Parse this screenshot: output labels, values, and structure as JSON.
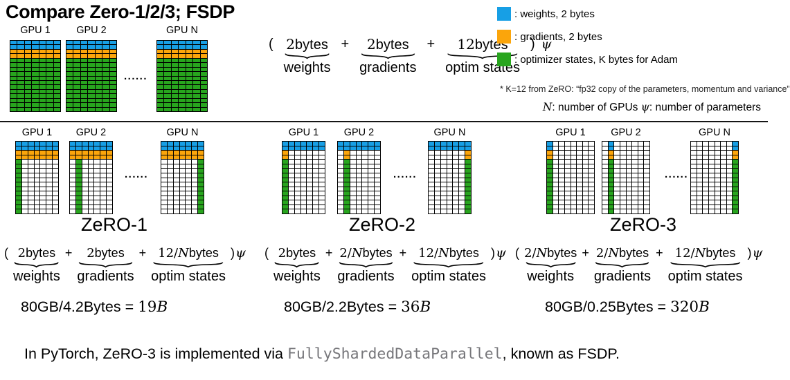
{
  "title": "Compare Zero-1/2/3; FSDP",
  "colors": {
    "weights": "#179fe5",
    "gradients": "#fba50b",
    "optimizer": "#28a51e",
    "empty": "#ffffff",
    "grid_line": "#000000",
    "mono_text": "#76767a"
  },
  "legend": {
    "items": [
      {
        "color_key": "weights",
        "label": ": weights,  2 bytes"
      },
      {
        "color_key": "gradients",
        "label": ": gradients, 2 bytes"
      },
      {
        "color_key": "optimizer",
        "label": ": optimizer states, K bytes for Adam"
      }
    ]
  },
  "footnote": "* K=12 from ZeRO: “fp32 copy of the parameters, momentum and variance”",
  "variables_note": {
    "parts": [
      {
        "t": "N",
        "i": true
      },
      {
        "t": ": number of GPUs  "
      },
      {
        "t": "ψ",
        "i": true
      },
      {
        "t": ": number of parameters"
      }
    ]
  },
  "baseline": {
    "dots": "......",
    "grid": {
      "cols": 7,
      "rows": 16,
      "type": "baseline",
      "blue_rows": 2,
      "orange_rows": 2,
      "green_rows": 12
    },
    "gpus": [
      {
        "label": "GPU 1",
        "shard": 0
      },
      {
        "label": "GPU 2",
        "shard": 1
      },
      {
        "label": "GPU N",
        "shard": -1
      }
    ],
    "formula": {
      "open": "(",
      "close": ")",
      "psi": "ψ",
      "terms": [
        {
          "label": "weights",
          "parts": [
            {
              "t": "2",
              "s": true
            },
            {
              "t": "bytes"
            }
          ]
        },
        {
          "label": "gradients",
          "parts": [
            {
              "t": "2",
              "s": true
            },
            {
              "t": "bytes"
            }
          ]
        },
        {
          "label": "optim states",
          "parts": [
            {
              "t": "12",
              "s": true
            },
            {
              "t": "bytes"
            }
          ]
        }
      ]
    }
  },
  "panels": [
    {
      "name": "ZeRO-1",
      "dots": "......",
      "grid": {
        "cols": 7,
        "rows": 16,
        "type": "zero1",
        "blue_rows": 2,
        "orange_rows": 2,
        "green_rows": 12
      },
      "gpus": [
        {
          "label": "GPU 1",
          "shard": 0
        },
        {
          "label": "GPU 2",
          "shard": 1
        },
        {
          "label": "GPU N",
          "shard": -1
        }
      ],
      "formula": {
        "open": "(",
        "close": ")",
        "psi": "ψ",
        "terms": [
          {
            "label": "weights",
            "parts": [
              {
                "t": "2",
                "s": true
              },
              {
                "t": "bytes"
              }
            ]
          },
          {
            "label": "gradients",
            "parts": [
              {
                "t": "2",
                "s": true
              },
              {
                "t": "bytes"
              }
            ]
          },
          {
            "label": "optim states",
            "parts": [
              {
                "t": "12/",
                "s": true
              },
              {
                "t": "N",
                "i": true
              },
              {
                "t": "bytes"
              }
            ]
          }
        ]
      },
      "equation": {
        "parts": [
          {
            "t": "80GB/4.2Bytes = "
          },
          {
            "t": "19",
            "s": true
          },
          {
            "t": "B",
            "i": true
          }
        ]
      }
    },
    {
      "name": "ZeRO-2",
      "dots": "......",
      "grid": {
        "cols": 7,
        "rows": 16,
        "type": "zero2",
        "blue_rows": 2,
        "orange_rows": 2,
        "green_rows": 12
      },
      "gpus": [
        {
          "label": "GPU 1",
          "shard": 0
        },
        {
          "label": "GPU 2",
          "shard": 1
        },
        {
          "label": "GPU N",
          "shard": -1
        }
      ],
      "formula": {
        "open": "(",
        "close": ")",
        "psi": "ψ",
        "terms": [
          {
            "label": "weights",
            "parts": [
              {
                "t": "2",
                "s": true
              },
              {
                "t": "bytes"
              }
            ]
          },
          {
            "label": "gradients",
            "parts": [
              {
                "t": "2/",
                "s": true
              },
              {
                "t": "N",
                "i": true
              },
              {
                "t": "bytes"
              }
            ]
          },
          {
            "label": "optim states",
            "parts": [
              {
                "t": "12/",
                "s": true
              },
              {
                "t": "N",
                "i": true
              },
              {
                "t": "bytes"
              }
            ]
          }
        ]
      },
      "equation": {
        "parts": [
          {
            "t": "80GB/2.2Bytes = "
          },
          {
            "t": "36",
            "s": true
          },
          {
            "t": "B",
            "i": true
          }
        ]
      }
    },
    {
      "name": "ZeRO-3",
      "dots": "......",
      "grid": {
        "cols": 8,
        "rows": 16,
        "type": "zero3",
        "blue_rows": 2,
        "orange_rows": 2,
        "green_rows": 12
      },
      "gpus": [
        {
          "label": "GPU 1",
          "shard": 0
        },
        {
          "label": "GPU 2",
          "shard": 1
        },
        {
          "label": "GPU N",
          "shard": -1
        }
      ],
      "formula": {
        "open": "(",
        "close": ")",
        "psi": "ψ",
        "terms": [
          {
            "label": "weights",
            "parts": [
              {
                "t": "2/",
                "s": true
              },
              {
                "t": "N",
                "i": true
              },
              {
                "t": "bytes"
              }
            ]
          },
          {
            "label": "gradients",
            "parts": [
              {
                "t": "2/",
                "s": true
              },
              {
                "t": "N",
                "i": true
              },
              {
                "t": "bytes"
              }
            ]
          },
          {
            "label": "optim states",
            "parts": [
              {
                "t": "12/",
                "s": true
              },
              {
                "t": "N",
                "i": true
              },
              {
                "t": "bytes"
              }
            ]
          }
        ]
      },
      "equation": {
        "parts": [
          {
            "t": "80GB/0.25Bytes = "
          },
          {
            "t": "320",
            "s": true
          },
          {
            "t": "B",
            "i": true
          }
        ]
      }
    }
  ],
  "bottom_note": {
    "parts": [
      {
        "t": "In PyTorch, ZeRO-3 is implemented via "
      },
      {
        "t": "FullyShardedDataParallel",
        "mono": true
      },
      {
        "t": ", known as FSDP."
      }
    ]
  }
}
